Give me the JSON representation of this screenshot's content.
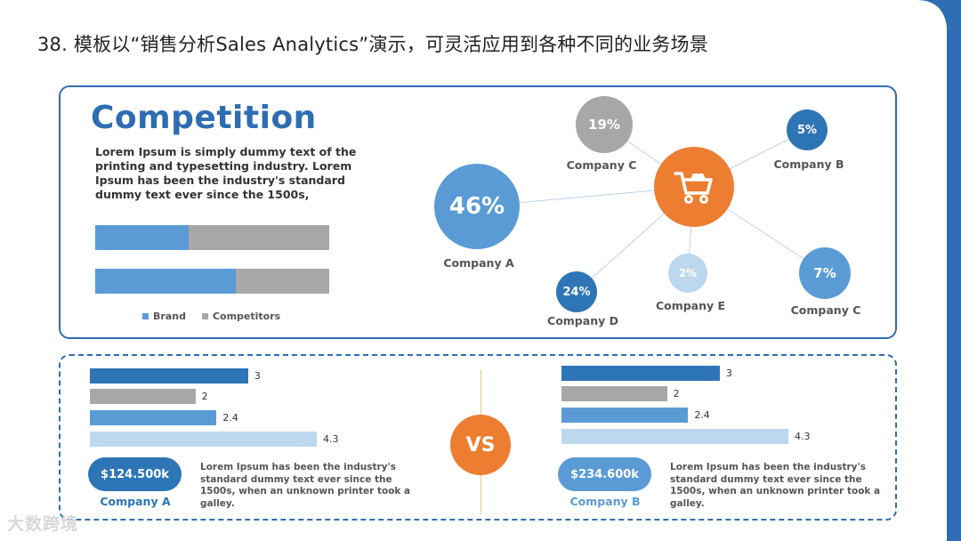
{
  "slide": {
    "title": "38. 模板以“销售分析Sales Analytics”演示，可灵活应用到各种不同的业务场景"
  },
  "competition": {
    "title": "Competition",
    "description": "Lorem Ipsum is simply dummy text of the printing and typesetting industry. Lorem Ipsum has been the industry's standard dummy text ever since the 1500s,",
    "legend": {
      "brand": "Brand",
      "competitors": "Competitors"
    }
  },
  "network": {
    "bubbles": [
      {
        "value": "46%",
        "label": "Company A"
      },
      {
        "value": "19%",
        "label": "Company C"
      },
      {
        "value": "5%",
        "label": "Company B"
      },
      {
        "value": "24%",
        "label": "Company D"
      },
      {
        "value": "2%",
        "label": "Company E"
      },
      {
        "value": "7%",
        "label": "Company C"
      }
    ],
    "center_icon": "shopping-cart-icon"
  },
  "comparison": {
    "vs_label": "VS",
    "left": {
      "amount": "$124.500k",
      "company": "Company A",
      "description": "Lorem Ipsum has been the industry's standard dummy text ever since the 1500s, when an unknown printer took a galley."
    },
    "right": {
      "amount": "$234.600k",
      "company": "Company B",
      "description": "Lorem Ipsum has been the industry's standard dummy text ever since the 1500s, when an unknown printer took a galley."
    }
  },
  "chart_data": [
    {
      "type": "bar",
      "orientation": "horizontal",
      "stacked": true,
      "categories": [
        "",
        ""
      ],
      "series": [
        {
          "name": "Brand",
          "values": [
            40,
            60
          ]
        },
        {
          "name": "Competitors",
          "values": [
            60,
            40
          ]
        }
      ],
      "legend": "bottom",
      "colors": [
        "#5b9bd5",
        "#a9a6a6"
      ]
    },
    {
      "type": "bar",
      "orientation": "horizontal",
      "categories": [
        "",
        "",
        "",
        ""
      ],
      "values": [
        3,
        2,
        2.4,
        4.3
      ],
      "data_labels": [
        "3",
        "2",
        "2.4",
        "4.3"
      ],
      "colors": [
        "#2e75b6",
        "#a9a6a6",
        "#5b9bd5",
        "#bdd7ee"
      ]
    },
    {
      "type": "bar",
      "orientation": "horizontal",
      "categories": [
        "",
        "",
        "",
        ""
      ],
      "values": [
        3,
        2,
        2.4,
        4.3
      ],
      "data_labels": [
        "3",
        "2",
        "2.4",
        "4.3"
      ],
      "colors": [
        "#2e75b6",
        "#a9a6a6",
        "#5b9bd5",
        "#bdd7ee"
      ]
    }
  ],
  "colors": {
    "accent_blue": "#2f6db3",
    "accent_orange": "#ed7d31",
    "grey": "#a9a6a6"
  },
  "watermark": "大数跨境"
}
